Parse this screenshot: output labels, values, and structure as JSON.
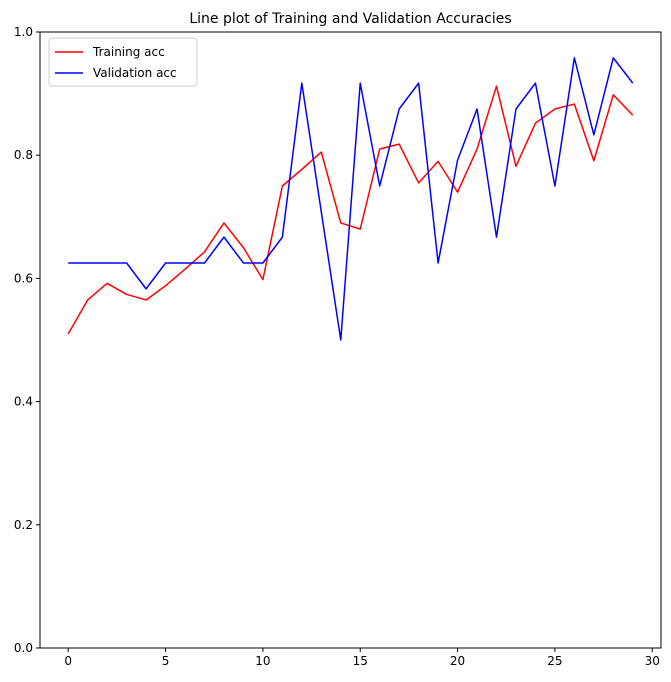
{
  "chart_data": {
    "type": "line",
    "title": "Line plot of Training and Validation Accuracies",
    "xlabel": "",
    "ylabel": "",
    "xlim": [
      -1.45,
      30.45
    ],
    "ylim": [
      0,
      1.0
    ],
    "xticks": [
      0,
      5,
      10,
      15,
      20,
      25,
      30
    ],
    "xtick_labels": [
      "0",
      "5",
      "10",
      "15",
      "20",
      "25",
      "30"
    ],
    "yticks": [
      0,
      0.2,
      0.4,
      0.6,
      0.8,
      1.0
    ],
    "ytick_labels": [
      "0.0",
      "0.2",
      "0.4",
      "0.6",
      "0.8",
      "1.0"
    ],
    "grid": false,
    "legend_position": "top-left",
    "x": [
      0,
      1,
      2,
      3,
      4,
      5,
      6,
      7,
      8,
      9,
      10,
      11,
      12,
      13,
      14,
      15,
      16,
      17,
      18,
      19,
      20,
      21,
      22,
      23,
      24,
      25,
      26,
      27,
      28,
      29
    ],
    "series": [
      {
        "name": "Training acc",
        "color": "#ff0000",
        "values": [
          0.51,
          0.565,
          0.592,
          0.574,
          0.565,
          0.588,
          0.615,
          0.643,
          0.69,
          0.65,
          0.598,
          0.75,
          0.777,
          0.805,
          0.69,
          0.68,
          0.81,
          0.818,
          0.755,
          0.79,
          0.74,
          0.81,
          0.912,
          0.782,
          0.852,
          0.875,
          0.883,
          0.791,
          0.898,
          0.865
        ]
      },
      {
        "name": "Validation acc",
        "color": "#0000ff",
        "values": [
          0.625,
          0.625,
          0.625,
          0.625,
          0.583,
          0.625,
          0.625,
          0.625,
          0.667,
          0.625,
          0.625,
          0.667,
          0.917,
          0.708,
          0.5,
          0.917,
          0.75,
          0.875,
          0.917,
          0.625,
          0.792,
          0.875,
          0.667,
          0.875,
          0.917,
          0.75,
          0.958,
          0.833,
          0.958,
          0.917
        ]
      }
    ]
  }
}
